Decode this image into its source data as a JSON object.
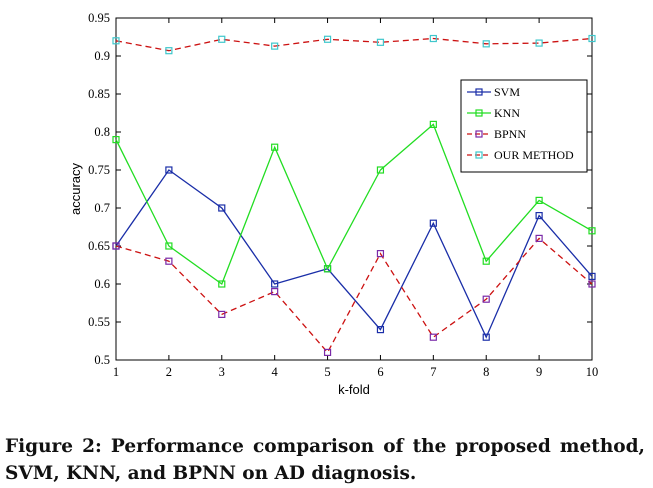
{
  "chart_data": {
    "type": "line",
    "title": "",
    "xlabel": "k-fold",
    "ylabel": "accuracy",
    "x": [
      1,
      2,
      3,
      4,
      5,
      6,
      7,
      8,
      9,
      10
    ],
    "xlim": [
      1,
      10
    ],
    "ylim": [
      0.5,
      0.95
    ],
    "xticks": [
      "1",
      "2",
      "3",
      "4",
      "5",
      "6",
      "7",
      "8",
      "9",
      "10"
    ],
    "yticks": [
      "0.5",
      "0.55",
      "0.6",
      "0.65",
      "0.7",
      "0.75",
      "0.8",
      "0.85",
      "0.9",
      "0.95"
    ],
    "grid": false,
    "legend_position": "right",
    "series": [
      {
        "name": "SVM",
        "color": "#1a2ea8",
        "dashed": false,
        "values": [
          0.65,
          0.75,
          0.7,
          0.6,
          0.62,
          0.54,
          0.68,
          0.53,
          0.69,
          0.61
        ]
      },
      {
        "name": "KNN",
        "color": "#22dd22",
        "dashed": false,
        "values": [
          0.79,
          0.65,
          0.6,
          0.78,
          0.62,
          0.75,
          0.81,
          0.63,
          0.71,
          0.67
        ]
      },
      {
        "name": "BPNN",
        "color": "#cc1111",
        "dashed": true,
        "marker_color": "#7a2aa8",
        "values": [
          0.65,
          0.63,
          0.56,
          0.59,
          0.51,
          0.64,
          0.53,
          0.58,
          0.66,
          0.6
        ]
      },
      {
        "name": "OUR METHOD",
        "color": "#cc1111",
        "dashed": true,
        "marker_color": "#3fc7cc",
        "values": [
          0.92,
          0.907,
          0.922,
          0.913,
          0.922,
          0.918,
          0.923,
          0.916,
          0.917,
          0.923
        ]
      }
    ]
  },
  "caption": "Figure 2: Performance comparison of the proposed method, SVM, KNN, and BPNN on AD diagnosis."
}
